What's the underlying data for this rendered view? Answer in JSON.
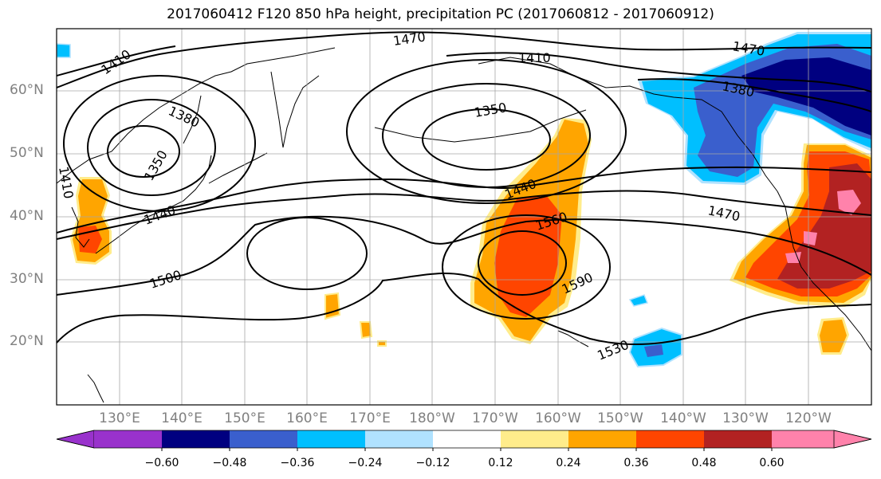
{
  "title": "2017060412 F120 850 hPa height, precipitation PC (2017060812 - 2017060912)",
  "lat_labels": [
    "60°N",
    "50°N",
    "40°N",
    "30°N",
    "20°N"
  ],
  "lon_labels": [
    "130°E",
    "140°E",
    "150°E",
    "160°E",
    "170°E",
    "180°W",
    "170°W",
    "160°W",
    "150°W",
    "140°W",
    "130°W",
    "120°W"
  ],
  "contour_labels": [
    "1410",
    "1470",
    "1410",
    "1470",
    "1380",
    "1380",
    "1350",
    "1350",
    "1410",
    "1440",
    "1440",
    "1560",
    "1470",
    "1590",
    "1500",
    "1530"
  ],
  "colorbar": {
    "tick_labels": [
      "−0.60",
      "−0.48",
      "−0.36",
      "−0.24",
      "−0.12",
      "0.12",
      "0.24",
      "0.36",
      "0.48",
      "0.60"
    ],
    "colors": [
      "#9932cc",
      "#000080",
      "#3a5fcd",
      "#00bfff",
      "#b0e2ff",
      "#ffffff",
      "#ffec8b",
      "#ffa500",
      "#ff4500",
      "#b22222",
      "#ff82ab"
    ]
  },
  "colors": {
    "purple": "#9932cc",
    "navy": "#000080",
    "royal": "#3a5fcd",
    "sky": "#00bfff",
    "pale": "#b0e2ff",
    "yellow": "#ffec8b",
    "orange": "#ffa500",
    "red_orange": "#ff4500",
    "firebrick": "#b22222",
    "pink": "#ff82ab"
  }
}
